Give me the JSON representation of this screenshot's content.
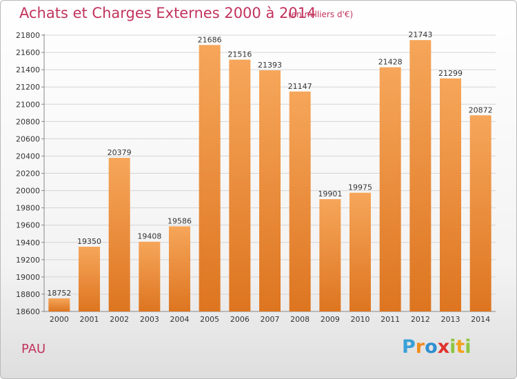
{
  "header": {
    "title": "Achats et Charges Externes 2000 à 2014",
    "subtitle": "(en milliers d'€)"
  },
  "footer": {
    "place": "PAU",
    "logo_letters": [
      "P",
      "r",
      "o",
      "x",
      "i",
      "t",
      "i"
    ],
    "logo_colors": [
      "#3aa0d8",
      "#f28c1e",
      "#2f8fd1",
      "#e0322e",
      "#8cc63f",
      "#f2a21e",
      "#8cc63f"
    ]
  },
  "chart_data": {
    "type": "bar",
    "categories": [
      "2000",
      "2001",
      "2002",
      "2003",
      "2004",
      "2005",
      "2006",
      "2007",
      "2008",
      "2009",
      "2010",
      "2011",
      "2012",
      "2013",
      "2014"
    ],
    "values": [
      18752,
      19350,
      20379,
      19408,
      19586,
      21686,
      21516,
      21393,
      21147,
      19901,
      19975,
      21428,
      21743,
      21299,
      20872
    ],
    "data_labels": [
      "18752",
      "19350",
      "20379",
      "19408",
      "19586",
      "21686",
      "21516",
      "21393",
      "21147",
      "19901",
      "19975",
      "21428",
      "21743",
      "21299",
      "20872"
    ],
    "yticks": [
      "18600",
      "18800",
      "19000",
      "19200",
      "19400",
      "19600",
      "19800",
      "20000",
      "20200",
      "20400",
      "20600",
      "20800",
      "21000",
      "21200",
      "21400",
      "21600",
      "21800"
    ],
    "ylim": [
      18600,
      21800
    ],
    "grid": true,
    "bar_color_top": "#f6a65a",
    "bar_color_bottom": "#dd7520"
  }
}
